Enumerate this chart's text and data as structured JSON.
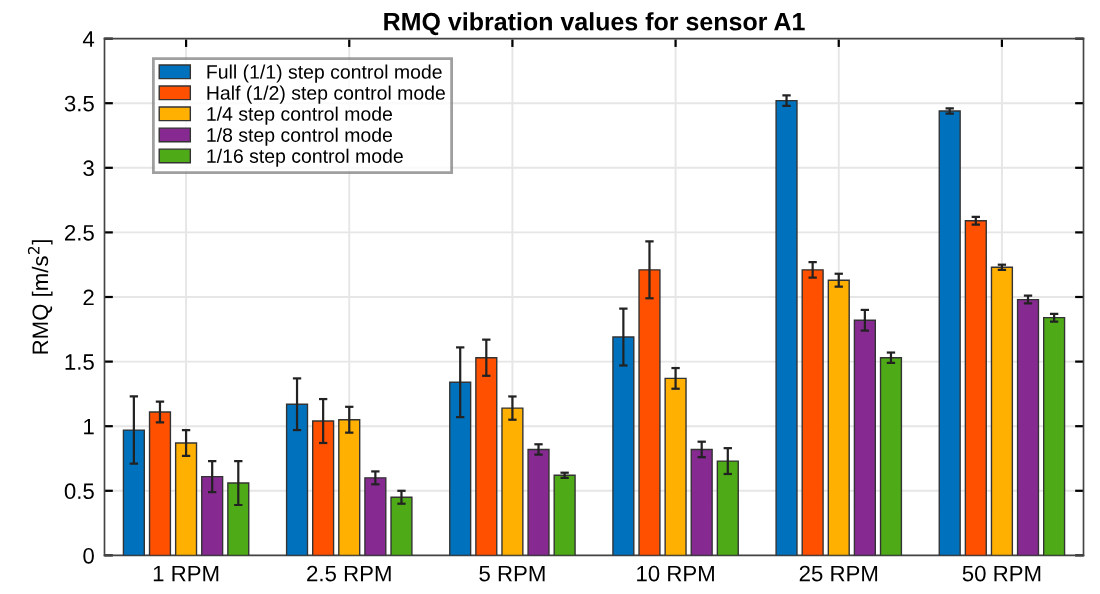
{
  "chart_data": {
    "type": "bar",
    "title": "RMQ vibration values for sensor A1",
    "ylabel": "RMQ [m/s$^{2}$]",
    "categories": [
      "1 RPM",
      "2.5 RPM",
      "5 RPM",
      "10 RPM",
      "25 RPM",
      "50 RPM"
    ],
    "series": [
      {
        "name": "Full (1/1) step control mode",
        "color": "#0072bd",
        "values": [
          0.97,
          1.17,
          1.34,
          1.69,
          3.52,
          3.44
        ],
        "errors": [
          0.26,
          0.2,
          0.27,
          0.22,
          0.04,
          0.02
        ]
      },
      {
        "name": "Half (1/2) step control mode",
        "color": "#ff5000",
        "values": [
          1.11,
          1.04,
          1.53,
          2.21,
          2.21,
          2.59
        ],
        "errors": [
          0.08,
          0.17,
          0.14,
          0.22,
          0.06,
          0.03
        ]
      },
      {
        "name": "1/4 step control mode",
        "color": "#ffb000",
        "values": [
          0.87,
          1.05,
          1.14,
          1.37,
          2.13,
          2.23
        ],
        "errors": [
          0.1,
          0.1,
          0.09,
          0.08,
          0.05,
          0.02
        ]
      },
      {
        "name": "1/8 step control mode",
        "color": "#862a92",
        "values": [
          0.61,
          0.6,
          0.82,
          0.82,
          1.82,
          1.98
        ],
        "errors": [
          0.12,
          0.05,
          0.04,
          0.06,
          0.08,
          0.03
        ]
      },
      {
        "name": "1/16 step control mode",
        "color": "#4eab17",
        "values": [
          0.56,
          0.45,
          0.62,
          0.73,
          1.53,
          1.84
        ],
        "errors": [
          0.17,
          0.05,
          0.02,
          0.1,
          0.04,
          0.03
        ]
      }
    ],
    "ylim": [
      0,
      4
    ],
    "yticks": [
      0,
      0.5,
      1,
      1.5,
      2,
      2.5,
      3,
      3.5,
      4
    ],
    "grid": true,
    "legend": "top left"
  }
}
